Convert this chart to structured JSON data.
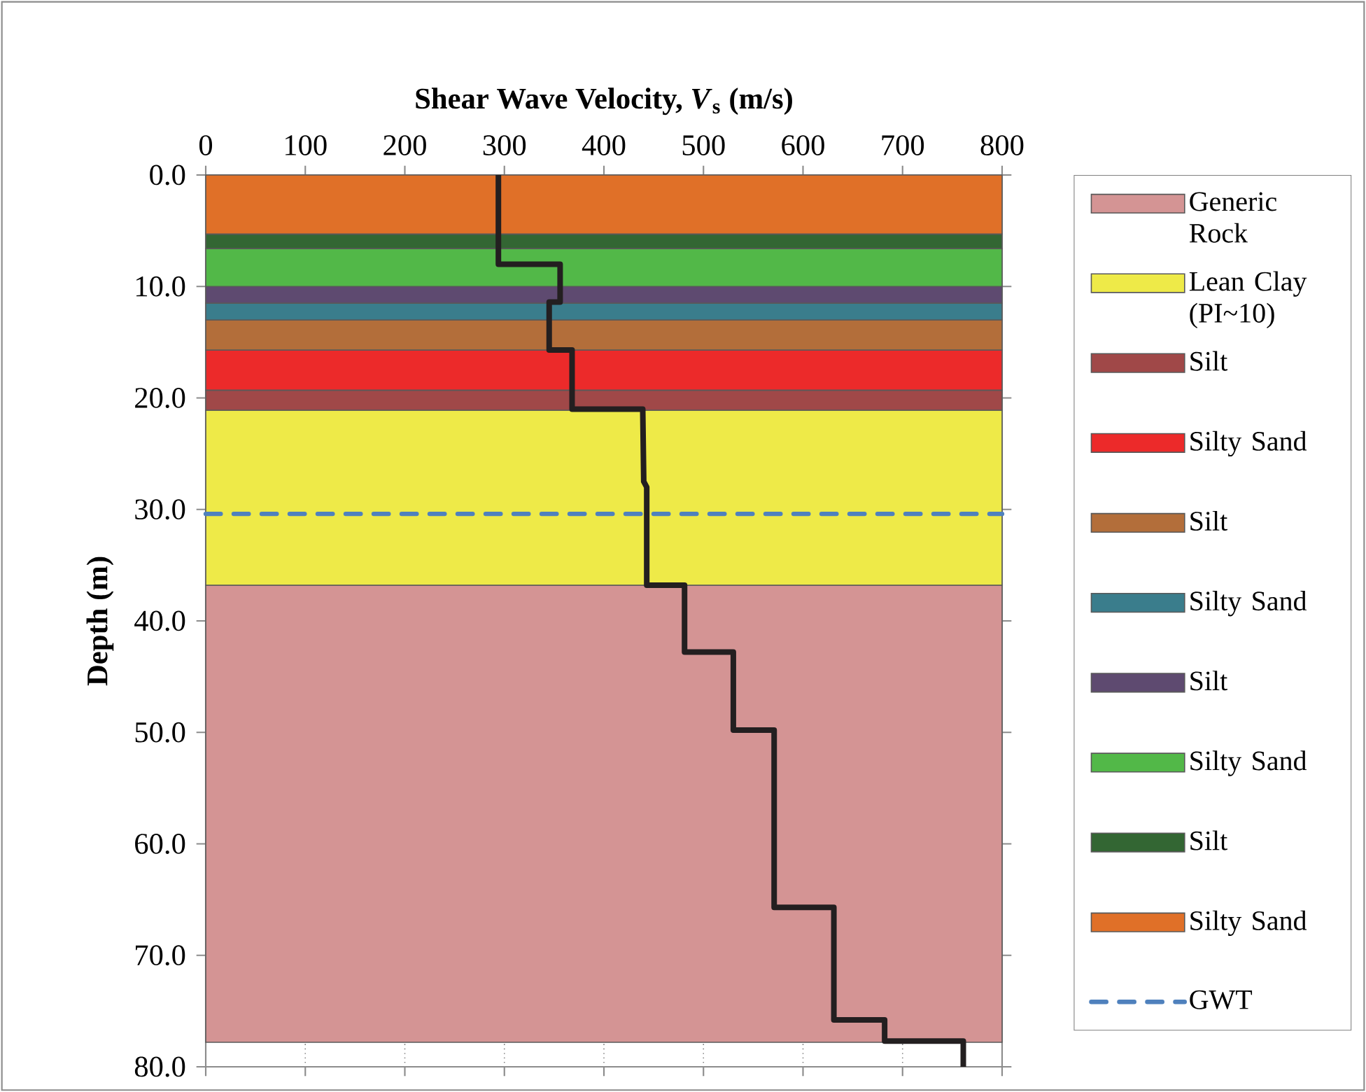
{
  "chart_data": {
    "type": "line",
    "xlabel": "Shear Wave Velocity, *V*$_{s}$ (m/s)",
    "ylabel": "Depth (m)",
    "xlim": [
      0,
      800
    ],
    "xticks": [
      0,
      100,
      200,
      300,
      400,
      500,
      600,
      700,
      800
    ],
    "ylim": [
      80,
      0
    ],
    "yticks": [
      {
        "value": 0,
        "label": "0.0"
      },
      {
        "value": 10,
        "label": "10.0"
      },
      {
        "value": 20,
        "label": "20.0"
      },
      {
        "value": 30,
        "label": "30.0"
      },
      {
        "value": 40,
        "label": "40.0"
      },
      {
        "value": 50,
        "label": "50.0"
      },
      {
        "value": 60,
        "label": "60.0"
      },
      {
        "value": 70,
        "label": "70.0"
      },
      {
        "value": 80,
        "label": "80.0"
      }
    ],
    "grid": "x",
    "legend": "right",
    "series": [
      {
        "color": "#231f20",
        "line_style": "solid",
        "x": [
          294,
          294,
          356,
          356,
          345,
          345,
          368,
          368,
          439,
          440,
          443,
          443,
          481,
          481,
          530,
          530,
          571,
          571,
          631,
          631,
          682,
          682,
          761,
          761
        ],
        "values": [
          0,
          8,
          8,
          11.4,
          11.4,
          15.7,
          15.7,
          21,
          21,
          27.5,
          28,
          36.8,
          36.8,
          42.8,
          42.8,
          49.8,
          49.8,
          65.7,
          65.7,
          75.8,
          75.8,
          77.7,
          77.7,
          80
        ]
      }
    ],
    "bands": [
      {
        "axis": "y",
        "from": 36.8,
        "to": 77.8,
        "label": "Generic Rock",
        "color": "#d49494"
      },
      {
        "axis": "y",
        "from": 21.1,
        "to": 36.8,
        "label": "Lean Clay (PI~10)",
        "color": "#eeea48"
      },
      {
        "axis": "y",
        "from": 19.3,
        "to": 21.1,
        "label": "Silt",
        "color": "#a04848"
      },
      {
        "axis": "y",
        "from": 15.7,
        "to": 19.3,
        "label": "Silty Sand",
        "color": "#ec2a2a"
      },
      {
        "axis": "y",
        "from": 13.0,
        "to": 15.7,
        "label": "Silt",
        "color": "#b36e3a"
      },
      {
        "axis": "y",
        "from": 11.5,
        "to": 13.0,
        "label": "Silty Sand",
        "color": "#3a7d8c"
      },
      {
        "axis": "y",
        "from": 10.0,
        "to": 11.5,
        "label": "Silt",
        "color": "#5e4a70"
      },
      {
        "axis": "y",
        "from": 6.6,
        "to": 10.0,
        "label": "Silty Sand",
        "color": "#52b848"
      },
      {
        "axis": "y",
        "from": 5.3,
        "to": 6.6,
        "label": "Silt",
        "color": "#336633"
      },
      {
        "axis": "y",
        "from": 0,
        "to": 5.3,
        "label": "Silty Sand",
        "color": "#e07028"
      }
    ],
    "ref_lines": [
      {
        "axis": "y",
        "value": 30.4,
        "label": "GWT",
        "color": "#4f81bd",
        "line_style": "dashed"
      }
    ]
  }
}
